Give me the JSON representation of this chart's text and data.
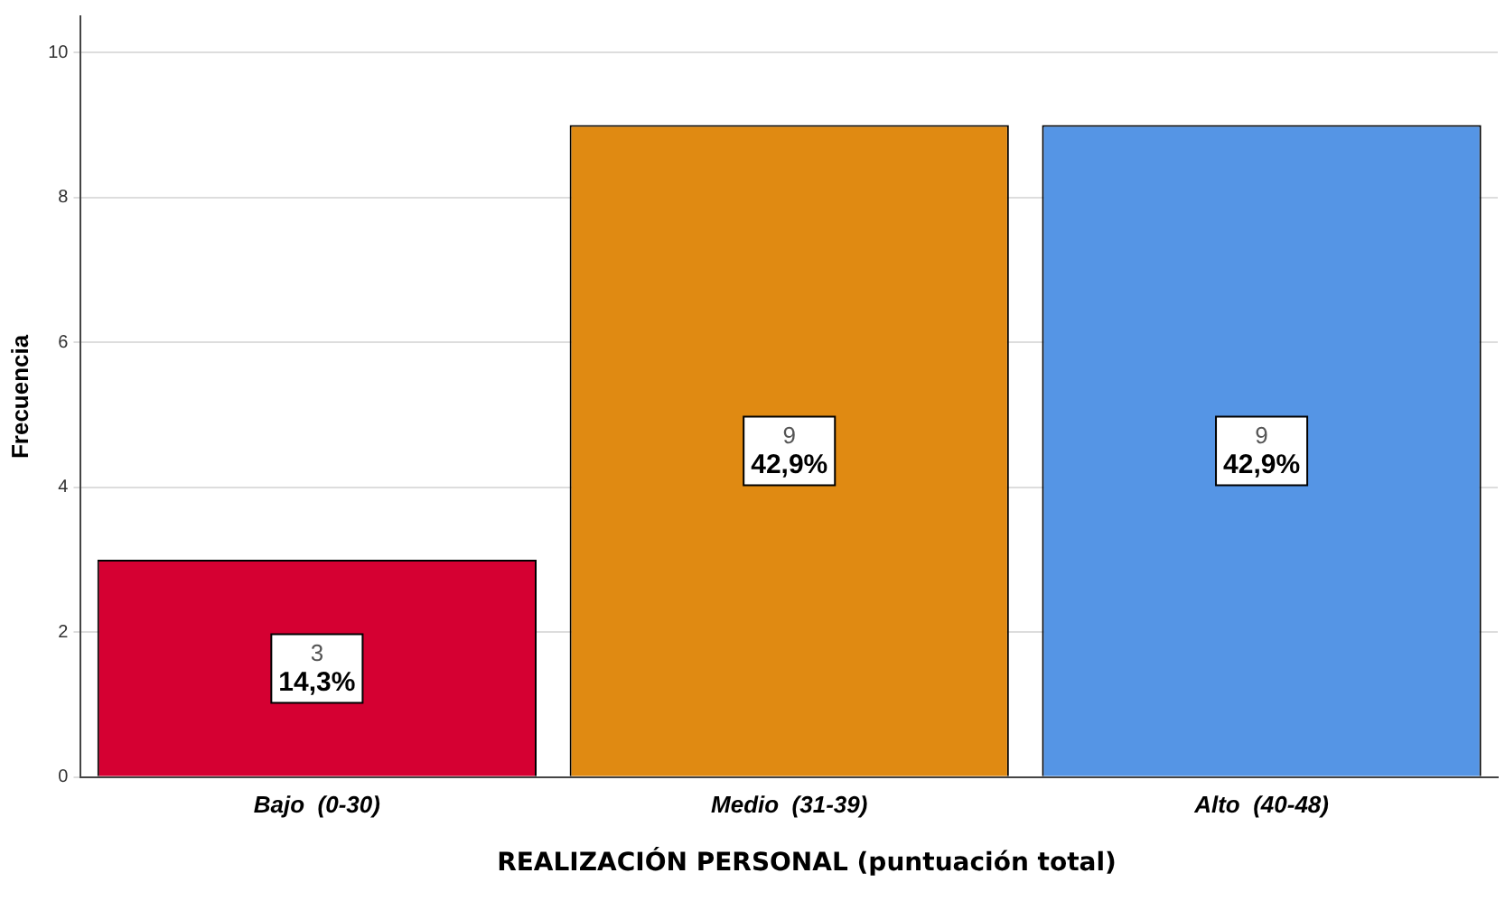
{
  "chart_data": {
    "type": "bar",
    "xlabel": "REALIZACIÓN PERSONAL (puntuación total)",
    "ylabel": "Frecuencia",
    "categories": [
      "Bajo  (0-30)",
      "Medio  (31-39)",
      "Alto  (40-48)"
    ],
    "values": [
      3,
      9,
      9
    ],
    "colors": [
      "#d50032",
      "#e08a12",
      "#5595e5"
    ],
    "value_labels": [
      "3\n14,3%",
      "9\n42,9%",
      "9\n42,9%"
    ],
    "ylim": [
      0,
      10.5
    ],
    "yticks": [
      0,
      2,
      4,
      6,
      8,
      10
    ],
    "grid": "y",
    "legend": false
  }
}
